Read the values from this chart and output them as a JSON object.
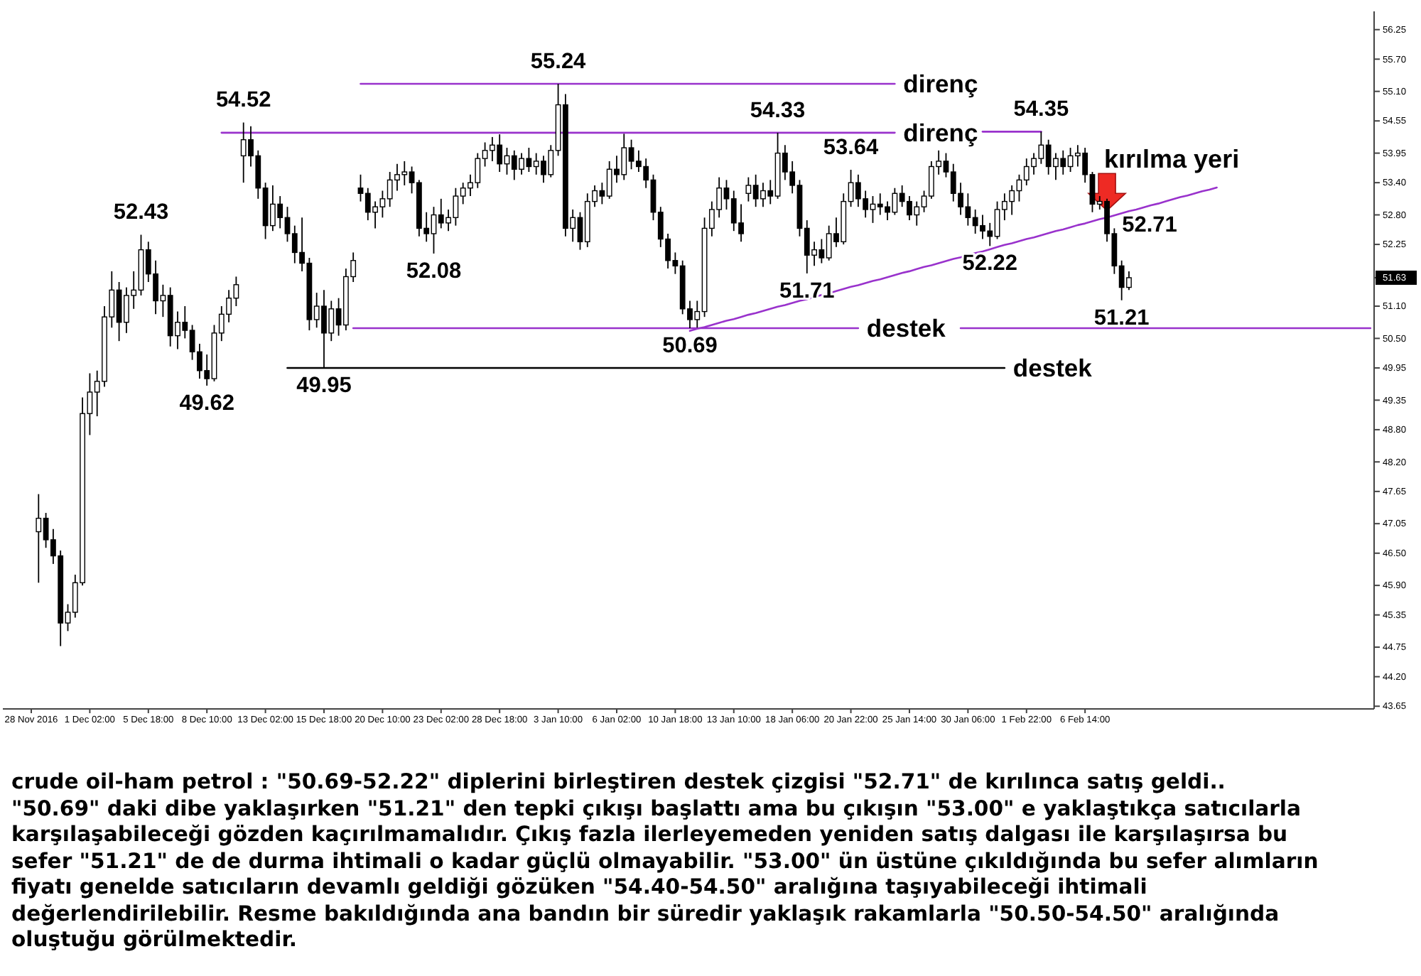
{
  "chart_data": {
    "type": "candlestick",
    "categories": [
      "28 Nov 2016",
      null,
      null,
      null,
      null,
      null,
      null,
      null,
      "1 Dec 02:00",
      null,
      null,
      null,
      null,
      null,
      null,
      null,
      "5 Dec 18:00",
      null,
      null,
      null,
      null,
      null,
      null,
      null,
      "8 Dec 10:00",
      null,
      null,
      null,
      null,
      null,
      null,
      null,
      "13 Dec 02:00",
      null,
      null,
      null,
      null,
      null,
      null,
      null,
      "15 Dec 18:00",
      null,
      null,
      null,
      null,
      null,
      null,
      null,
      "20 Dec 10:00",
      null,
      null,
      null,
      null,
      null,
      null,
      null,
      "23 Dec 02:00",
      null,
      null,
      null,
      null,
      null,
      null,
      null,
      "28 Dec 18:00",
      null,
      null,
      null,
      null,
      null,
      null,
      null,
      "3 Jan 10:00",
      null,
      null,
      null,
      null,
      null,
      null,
      null,
      "6 Jan 02:00",
      null,
      null,
      null,
      null,
      null,
      null,
      null,
      "10 Jan 18:00",
      null,
      null,
      null,
      null,
      null,
      null,
      null,
      "13 Jan 10:00",
      null,
      null,
      null,
      null,
      null,
      null,
      null,
      "18 Jan 06:00",
      null,
      null,
      null,
      null,
      null,
      null,
      null,
      "20 Jan 22:00",
      null,
      null,
      null,
      null,
      null,
      null,
      null,
      "25 Jan 14:00",
      null,
      null,
      null,
      null,
      null,
      null,
      null,
      "30 Jan 06:00",
      null,
      null,
      null,
      null,
      null,
      null,
      null,
      "1 Feb 22:00",
      null,
      null,
      null,
      null,
      null,
      null,
      null,
      "6 Feb 14:00",
      null,
      null,
      null,
      null,
      null,
      null,
      null,
      null,
      null,
      null,
      null,
      null,
      null,
      null,
      null,
      null,
      null,
      null,
      null,
      null,
      null,
      null,
      null,
      null,
      null,
      null,
      null,
      null,
      null,
      null,
      null,
      null,
      null,
      null,
      null,
      null,
      null,
      null,
      null
    ],
    "ohlc": [
      null,
      [
        46.9,
        47.6,
        45.95,
        47.15
      ],
      [
        47.15,
        47.25,
        46.6,
        46.75
      ],
      [
        46.75,
        46.95,
        46.3,
        46.45
      ],
      [
        46.45,
        46.55,
        44.77,
        45.2
      ],
      [
        45.2,
        45.55,
        45.05,
        45.4
      ],
      [
        45.4,
        46.1,
        45.3,
        45.95
      ],
      [
        45.95,
        49.4,
        45.9,
        49.1
      ],
      [
        49.1,
        49.85,
        48.7,
        49.5
      ],
      [
        49.5,
        49.9,
        49.05,
        49.7
      ],
      [
        49.7,
        51.1,
        49.6,
        50.9
      ],
      [
        50.9,
        51.75,
        50.7,
        51.4
      ],
      [
        51.4,
        51.55,
        50.45,
        50.8
      ],
      [
        50.8,
        51.45,
        50.6,
        51.3
      ],
      [
        51.3,
        51.75,
        51.05,
        51.4
      ],
      [
        51.4,
        52.43,
        51.3,
        52.15
      ],
      [
        52.15,
        52.3,
        51.55,
        51.7
      ],
      [
        51.7,
        51.95,
        50.95,
        51.2
      ],
      [
        51.2,
        51.5,
        50.9,
        51.3
      ],
      [
        51.3,
        51.45,
        50.35,
        50.55
      ],
      [
        50.55,
        51.0,
        50.3,
        50.8
      ],
      [
        50.8,
        51.1,
        50.5,
        50.65
      ],
      [
        50.65,
        50.75,
        50.1,
        50.25
      ],
      [
        50.25,
        50.4,
        49.75,
        49.9
      ],
      [
        49.9,
        50.2,
        49.62,
        49.75
      ],
      [
        49.75,
        50.75,
        49.7,
        50.6
      ],
      [
        50.6,
        51.1,
        50.45,
        50.95
      ],
      [
        50.95,
        51.4,
        50.8,
        51.25
      ],
      [
        51.25,
        51.65,
        51.1,
        51.5
      ],
      [
        53.9,
        54.52,
        53.4,
        54.2
      ],
      [
        54.2,
        54.45,
        53.7,
        53.9
      ],
      [
        53.9,
        54.0,
        53.1,
        53.3
      ],
      [
        53.3,
        53.4,
        52.35,
        52.6
      ],
      [
        52.6,
        53.35,
        52.5,
        53.0
      ],
      [
        53.0,
        53.15,
        52.55,
        52.75
      ],
      [
        52.75,
        52.95,
        52.3,
        52.45
      ],
      [
        52.45,
        52.6,
        51.9,
        52.1
      ],
      [
        52.1,
        52.75,
        51.75,
        51.9
      ],
      [
        51.9,
        52.0,
        50.65,
        50.85
      ],
      [
        50.85,
        51.35,
        50.7,
        51.1
      ],
      [
        51.1,
        51.4,
        49.95,
        50.6
      ],
      [
        50.6,
        51.2,
        50.45,
        51.05
      ],
      [
        51.05,
        51.25,
        50.55,
        50.75
      ],
      [
        50.75,
        51.8,
        50.65,
        51.65
      ],
      [
        51.65,
        52.1,
        51.55,
        51.95
      ],
      [
        53.3,
        53.55,
        53.05,
        53.2
      ],
      [
        53.2,
        53.3,
        52.7,
        52.85
      ],
      [
        52.85,
        53.05,
        52.55,
        52.95
      ],
      [
        52.95,
        53.25,
        52.75,
        53.1
      ],
      [
        53.1,
        53.6,
        52.95,
        53.45
      ],
      [
        53.45,
        53.75,
        53.25,
        53.55
      ],
      [
        53.55,
        53.8,
        53.35,
        53.6
      ],
      [
        53.6,
        53.7,
        53.2,
        53.4
      ],
      [
        53.4,
        53.45,
        52.4,
        52.55
      ],
      [
        52.55,
        52.85,
        52.3,
        52.45
      ],
      [
        52.45,
        52.95,
        52.08,
        52.8
      ],
      [
        52.8,
        53.1,
        52.55,
        52.65
      ],
      [
        52.65,
        52.9,
        52.5,
        52.75
      ],
      [
        52.75,
        53.3,
        52.6,
        53.15
      ],
      [
        53.15,
        53.4,
        53.0,
        53.3
      ],
      [
        53.3,
        53.55,
        53.15,
        53.4
      ],
      [
        53.4,
        53.95,
        53.3,
        53.85
      ],
      [
        53.85,
        54.15,
        53.7,
        54.0
      ],
      [
        54.0,
        54.25,
        53.8,
        54.1
      ],
      [
        54.1,
        54.3,
        53.6,
        53.75
      ],
      [
        53.75,
        54.05,
        53.55,
        53.9
      ],
      [
        53.9,
        54.0,
        53.45,
        53.65
      ],
      [
        53.65,
        53.95,
        53.55,
        53.85
      ],
      [
        53.85,
        54.05,
        53.6,
        53.7
      ],
      [
        53.7,
        53.95,
        53.55,
        53.8
      ],
      [
        53.8,
        53.9,
        53.4,
        53.55
      ],
      [
        53.55,
        54.1,
        53.5,
        54.0
      ],
      [
        54.0,
        55.24,
        53.9,
        54.85
      ],
      [
        54.85,
        55.05,
        52.4,
        52.55
      ],
      [
        52.55,
        52.9,
        52.3,
        52.75
      ],
      [
        52.75,
        52.85,
        52.15,
        52.3
      ],
      [
        52.3,
        53.2,
        52.2,
        53.05
      ],
      [
        53.05,
        53.35,
        52.95,
        53.25
      ],
      [
        53.25,
        53.4,
        53.0,
        53.15
      ],
      [
        53.15,
        53.8,
        53.1,
        53.65
      ],
      [
        53.65,
        53.9,
        53.4,
        53.55
      ],
      [
        53.55,
        54.31,
        53.45,
        54.05
      ],
      [
        54.05,
        54.2,
        53.65,
        53.8
      ],
      [
        53.8,
        54.0,
        53.6,
        53.7
      ],
      [
        53.7,
        53.85,
        53.3,
        53.45
      ],
      [
        53.45,
        53.55,
        52.7,
        52.85
      ],
      [
        52.85,
        52.95,
        52.2,
        52.35
      ],
      [
        52.35,
        52.45,
        51.8,
        51.95
      ],
      [
        51.95,
        52.1,
        51.7,
        51.85
      ],
      [
        51.85,
        51.95,
        50.95,
        51.05
      ],
      [
        51.05,
        51.2,
        50.69,
        50.85
      ],
      [
        50.85,
        51.2,
        50.7,
        51.0
      ],
      [
        51.0,
        52.75,
        50.9,
        52.55
      ],
      [
        52.55,
        53.05,
        52.4,
        52.9
      ],
      [
        52.9,
        53.5,
        52.75,
        53.3
      ],
      [
        53.3,
        53.45,
        52.9,
        53.1
      ],
      [
        53.1,
        53.25,
        52.5,
        52.65
      ],
      [
        52.65,
        53.0,
        52.3,
        52.45
      ],
      [
        53.2,
        53.5,
        53.05,
        53.35
      ],
      [
        53.35,
        53.55,
        52.95,
        53.1
      ],
      [
        53.1,
        53.4,
        52.95,
        53.25
      ],
      [
        53.25,
        53.45,
        53.0,
        53.15
      ],
      [
        53.15,
        54.33,
        53.1,
        53.95
      ],
      [
        53.95,
        54.1,
        53.45,
        53.6
      ],
      [
        53.6,
        53.8,
        53.2,
        53.35
      ],
      [
        53.35,
        53.45,
        52.4,
        52.55
      ],
      [
        52.55,
        52.7,
        51.71,
        52.05
      ],
      [
        52.05,
        52.3,
        51.85,
        52.15
      ],
      [
        52.15,
        52.35,
        51.9,
        52.0
      ],
      [
        52.0,
        52.6,
        51.95,
        52.45
      ],
      [
        52.45,
        52.75,
        52.2,
        52.3
      ],
      [
        52.3,
        53.2,
        52.25,
        53.05
      ],
      [
        53.05,
        53.64,
        52.95,
        53.4
      ],
      [
        53.4,
        53.55,
        52.95,
        53.1
      ],
      [
        53.1,
        53.25,
        52.75,
        52.9
      ],
      [
        52.9,
        53.15,
        52.65,
        53.0
      ],
      [
        53.0,
        53.2,
        52.8,
        52.95
      ],
      [
        52.95,
        53.05,
        52.7,
        52.85
      ],
      [
        52.85,
        53.3,
        52.8,
        53.2
      ],
      [
        53.2,
        53.35,
        52.95,
        53.05
      ],
      [
        53.05,
        53.15,
        52.7,
        52.8
      ],
      [
        52.8,
        53.05,
        52.6,
        52.95
      ],
      [
        52.95,
        53.25,
        52.85,
        53.15
      ],
      [
        53.15,
        53.8,
        53.1,
        53.7
      ],
      [
        53.7,
        54.0,
        53.55,
        53.8
      ],
      [
        53.8,
        53.95,
        53.5,
        53.6
      ],
      [
        53.6,
        53.75,
        53.05,
        53.2
      ],
      [
        53.2,
        53.4,
        52.8,
        52.95
      ],
      [
        52.95,
        53.2,
        52.6,
        52.75
      ],
      [
        52.75,
        52.9,
        52.45,
        52.6
      ],
      [
        52.6,
        52.8,
        52.35,
        52.5
      ],
      [
        52.5,
        52.65,
        52.22,
        52.4
      ],
      [
        52.4,
        53.05,
        52.35,
        52.9
      ],
      [
        52.9,
        53.2,
        52.7,
        53.05
      ],
      [
        53.05,
        53.35,
        52.8,
        53.25
      ],
      [
        53.25,
        53.55,
        53.05,
        53.45
      ],
      [
        53.45,
        53.85,
        53.35,
        53.7
      ],
      [
        53.7,
        53.95,
        53.55,
        53.85
      ],
      [
        53.85,
        54.35,
        53.75,
        54.1
      ],
      [
        54.1,
        54.2,
        53.55,
        53.7
      ],
      [
        53.7,
        53.95,
        53.45,
        53.85
      ],
      [
        53.85,
        54.0,
        53.55,
        53.7
      ],
      [
        53.7,
        54.05,
        53.6,
        53.9
      ],
      [
        53.9,
        54.1,
        53.7,
        53.95
      ],
      [
        53.95,
        54.05,
        53.4,
        53.55
      ],
      [
        53.55,
        53.6,
        52.85,
        53.0
      ],
      [
        53.0,
        53.15,
        52.9,
        53.05
      ],
      [
        53.05,
        53.1,
        52.3,
        52.45
      ],
      [
        52.45,
        52.55,
        51.7,
        51.85
      ],
      [
        51.85,
        51.95,
        51.21,
        51.45
      ],
      [
        51.45,
        51.75,
        51.4,
        51.63
      ],
      null,
      null,
      null,
      null,
      null,
      null,
      null,
      null,
      null,
      null,
      null,
      null,
      null,
      null,
      null,
      null,
      null,
      null,
      null,
      null,
      null,
      null,
      null,
      null,
      null,
      null,
      null,
      null,
      null,
      null,
      null,
      null,
      null
    ],
    "series": [
      {
        "type": "line",
        "name": "direnç",
        "color": "#9932cc",
        "values": [
          null,
          null,
          null,
          null,
          null,
          null,
          null,
          null,
          null,
          null,
          null,
          null,
          null,
          null,
          null,
          null,
          null,
          null,
          null,
          null,
          null,
          null,
          null,
          null,
          null,
          null,
          null,
          null,
          null,
          null,
          null,
          null,
          null,
          null,
          null,
          null,
          null,
          null,
          null,
          null,
          null,
          null,
          null,
          null,
          null,
          55.24,
          55.24,
          55.24,
          55.24,
          55.24,
          55.24,
          55.24,
          55.24,
          55.24,
          55.24,
          55.24,
          55.24,
          55.24,
          55.24,
          55.24,
          55.24,
          55.24,
          55.24,
          55.24,
          55.24,
          55.24,
          55.24,
          55.24,
          55.24,
          55.24,
          55.24,
          55.24,
          55.24,
          55.24,
          55.24,
          55.24,
          55.24,
          55.24,
          55.24,
          55.24,
          55.24,
          55.24,
          55.24,
          55.24,
          55.24,
          55.24,
          55.24,
          55.24,
          55.24,
          55.24,
          55.24,
          55.24,
          55.24,
          55.24,
          55.24,
          55.24,
          55.24,
          55.24,
          55.24,
          55.24,
          55.24,
          55.24,
          55.24,
          55.24,
          55.24,
          55.24,
          55.24,
          55.24,
          55.24,
          55.24,
          55.24,
          55.24,
          55.24,
          55.24,
          55.24,
          55.24,
          55.24,
          55.24,
          55.24,
          null,
          null,
          null,
          null,
          null,
          null,
          null,
          null,
          null,
          null,
          null,
          null,
          null,
          null,
          null,
          null,
          null,
          null,
          null,
          null,
          null,
          null,
          null,
          null,
          null,
          null,
          null,
          null,
          null,
          null,
          null,
          null,
          null,
          null,
          null,
          null,
          null,
          null,
          null,
          null,
          null,
          null,
          null,
          null,
          null,
          null,
          null,
          null,
          null,
          null,
          null,
          null,
          null,
          null,
          null,
          null,
          null,
          null,
          null,
          null,
          null,
          null,
          null,
          null,
          null
        ]
      },
      {
        "type": "line",
        "name": "direnç",
        "color": "#9932cc",
        "values": [
          null,
          null,
          null,
          null,
          null,
          null,
          null,
          null,
          null,
          null,
          null,
          null,
          null,
          null,
          null,
          null,
          null,
          null,
          null,
          null,
          null,
          null,
          null,
          null,
          null,
          null,
          54.33,
          54.33,
          54.33,
          54.33,
          54.33,
          54.33,
          54.33,
          54.33,
          54.33,
          54.33,
          54.33,
          54.33,
          54.33,
          54.33,
          54.33,
          54.33,
          54.33,
          54.33,
          54.33,
          54.33,
          54.33,
          54.33,
          54.33,
          54.33,
          54.33,
          54.33,
          54.33,
          54.33,
          54.33,
          54.33,
          54.33,
          54.33,
          54.33,
          54.33,
          54.33,
          54.33,
          54.33,
          54.33,
          54.33,
          54.33,
          54.33,
          54.33,
          54.33,
          54.33,
          54.33,
          54.33,
          54.33,
          54.33,
          54.33,
          54.33,
          54.33,
          54.33,
          54.33,
          54.33,
          54.33,
          54.33,
          54.33,
          54.33,
          54.33,
          54.33,
          54.33,
          54.33,
          54.33,
          54.33,
          54.33,
          54.33,
          54.33,
          54.33,
          54.33,
          54.33,
          54.33,
          54.33,
          54.33,
          54.33,
          54.33,
          54.33,
          54.33,
          54.33,
          54.33,
          54.33,
          54.33,
          54.33,
          54.33,
          54.33,
          54.33,
          54.33,
          54.33,
          54.33,
          54.33,
          54.33,
          54.33,
          54.33,
          54.33,
          null,
          null,
          null,
          null,
          null,
          null,
          null,
          null,
          null,
          null,
          null,
          null,
          null,
          null,
          null,
          null,
          null,
          null,
          null,
          null,
          null,
          null,
          null,
          null,
          null,
          null,
          null,
          null,
          null,
          null,
          null,
          null,
          null,
          null,
          null,
          null,
          null,
          null,
          null,
          null,
          null,
          null,
          null,
          null,
          null,
          null,
          null,
          null,
          null,
          null,
          null,
          null,
          null,
          null,
          null,
          null,
          null,
          null,
          null,
          null,
          null,
          null,
          null,
          null,
          null
        ]
      },
      {
        "type": "line",
        "color": "#9932cc",
        "values": [
          null,
          null,
          null,
          null,
          null,
          null,
          null,
          null,
          null,
          null,
          null,
          null,
          null,
          null,
          null,
          null,
          null,
          null,
          null,
          null,
          null,
          null,
          null,
          null,
          null,
          null,
          null,
          null,
          null,
          null,
          null,
          null,
          null,
          null,
          null,
          null,
          null,
          null,
          null,
          null,
          null,
          null,
          null,
          null,
          null,
          null,
          null,
          null,
          null,
          null,
          null,
          null,
          null,
          null,
          null,
          null,
          null,
          null,
          null,
          null,
          null,
          null,
          null,
          null,
          null,
          null,
          null,
          null,
          null,
          null,
          null,
          null,
          null,
          null,
          null,
          null,
          null,
          null,
          null,
          null,
          null,
          null,
          null,
          null,
          null,
          null,
          null,
          null,
          null,
          null,
          null,
          null,
          null,
          null,
          null,
          null,
          null,
          null,
          null,
          null,
          null,
          null,
          null,
          null,
          null,
          null,
          null,
          null,
          null,
          null,
          null,
          null,
          null,
          null,
          null,
          null,
          null,
          null,
          null,
          null,
          null,
          null,
          null,
          null,
          null,
          null,
          null,
          null,
          null,
          null,
          54.35,
          54.35,
          54.35,
          54.35,
          54.35,
          54.35,
          54.35,
          54.35,
          54.35,
          null,
          null,
          null,
          null,
          null,
          null,
          null,
          null,
          null,
          null,
          null,
          null,
          null,
          null,
          null,
          null,
          null,
          null,
          null,
          null,
          null,
          null,
          null,
          null,
          null,
          null,
          null,
          null,
          null,
          null,
          null,
          null,
          null,
          null,
          null,
          null,
          null,
          null,
          null,
          null,
          null,
          null,
          null,
          null,
          null
        ]
      },
      {
        "type": "line",
        "name": "destek",
        "color": "#9932cc",
        "values": [
          null,
          null,
          null,
          null,
          null,
          null,
          null,
          null,
          null,
          null,
          null,
          null,
          null,
          null,
          null,
          null,
          null,
          null,
          null,
          null,
          null,
          null,
          null,
          null,
          null,
          null,
          null,
          null,
          null,
          null,
          null,
          null,
          null,
          null,
          null,
          null,
          null,
          null,
          null,
          null,
          null,
          null,
          null,
          null,
          50.69,
          50.69,
          50.69,
          50.69,
          50.69,
          50.69,
          50.69,
          50.69,
          50.69,
          50.69,
          50.69,
          50.69,
          50.69,
          50.69,
          50.69,
          50.69,
          50.69,
          50.69,
          50.69,
          50.69,
          50.69,
          50.69,
          50.69,
          50.69,
          50.69,
          50.69,
          50.69,
          50.69,
          50.69,
          50.69,
          50.69,
          50.69,
          50.69,
          50.69,
          50.69,
          50.69,
          50.69,
          50.69,
          50.69,
          50.69,
          50.69,
          50.69,
          50.69,
          50.69,
          50.69,
          50.69,
          50.69,
          50.69,
          50.69,
          50.69,
          50.69,
          50.69,
          50.69,
          50.69,
          50.69,
          50.69,
          50.69,
          50.69,
          50.69,
          50.69,
          50.69,
          50.69,
          50.69,
          50.69,
          50.69,
          50.69,
          50.69,
          50.69,
          50.69,
          50.69,
          null,
          null,
          null,
          null,
          null,
          null,
          null,
          null,
          null,
          null,
          null,
          null,
          null,
          null,
          null,
          null,
          null,
          null,
          null,
          null,
          null,
          null,
          null,
          null,
          null,
          null,
          null,
          null,
          null,
          null,
          null,
          null,
          null,
          null,
          null,
          null,
          null,
          null,
          null,
          null,
          null,
          null,
          null,
          null,
          null,
          null,
          null,
          null,
          null,
          null,
          null,
          null,
          null,
          null,
          null,
          null,
          null,
          null,
          null,
          null,
          null,
          null,
          null,
          null,
          null,
          null,
          null,
          null,
          null,
          null
        ]
      },
      {
        "type": "line",
        "color": "#9932cc",
        "values": [
          null,
          null,
          null,
          null,
          null,
          null,
          null,
          null,
          null,
          null,
          null,
          null,
          null,
          null,
          null,
          null,
          null,
          null,
          null,
          null,
          null,
          null,
          null,
          null,
          null,
          null,
          null,
          null,
          null,
          null,
          null,
          null,
          null,
          null,
          null,
          null,
          null,
          null,
          null,
          null,
          null,
          null,
          null,
          null,
          null,
          null,
          null,
          null,
          null,
          null,
          null,
          null,
          null,
          null,
          null,
          null,
          null,
          null,
          null,
          null,
          null,
          null,
          null,
          null,
          null,
          null,
          null,
          null,
          null,
          null,
          null,
          null,
          null,
          null,
          null,
          null,
          null,
          null,
          null,
          null,
          null,
          null,
          null,
          null,
          null,
          null,
          null,
          null,
          null,
          null,
          null,
          null,
          null,
          null,
          null,
          null,
          null,
          null,
          null,
          null,
          null,
          null,
          null,
          null,
          null,
          null,
          null,
          null,
          null,
          null,
          null,
          null,
          null,
          null,
          null,
          null,
          null,
          null,
          null,
          null,
          null,
          null,
          null,
          null,
          null,
          null,
          null,
          50.69,
          50.69,
          50.69,
          50.69,
          50.69,
          50.69,
          50.69,
          50.69,
          50.69,
          50.69,
          50.69,
          50.69,
          50.69,
          50.69,
          50.69,
          50.69,
          50.69,
          50.69,
          50.69,
          50.69,
          50.69,
          50.69,
          50.69,
          50.69,
          50.69,
          50.69,
          50.69,
          50.69,
          50.69,
          50.69,
          50.69,
          50.69,
          50.69,
          50.69,
          50.69,
          50.69,
          50.69,
          50.69,
          50.69,
          50.69,
          50.69,
          50.69,
          50.69,
          50.69,
          50.69,
          50.69,
          50.69,
          50.69,
          50.69,
          50.69,
          50.69,
          50.69,
          50.69,
          50.69,
          50.69,
          50.69,
          50.69
        ]
      },
      {
        "type": "line",
        "name": "destek",
        "color": "#000000",
        "values": [
          null,
          null,
          null,
          null,
          null,
          null,
          null,
          null,
          null,
          null,
          null,
          null,
          null,
          null,
          null,
          null,
          null,
          null,
          null,
          null,
          null,
          null,
          null,
          null,
          null,
          null,
          null,
          null,
          null,
          null,
          null,
          null,
          null,
          null,
          null,
          49.95,
          49.95,
          49.95,
          49.95,
          49.95,
          49.95,
          49.95,
          49.95,
          49.95,
          49.95,
          49.95,
          49.95,
          49.95,
          49.95,
          49.95,
          49.95,
          49.95,
          49.95,
          49.95,
          49.95,
          49.95,
          49.95,
          49.95,
          49.95,
          49.95,
          49.95,
          49.95,
          49.95,
          49.95,
          49.95,
          49.95,
          49.95,
          49.95,
          49.95,
          49.95,
          49.95,
          49.95,
          49.95,
          49.95,
          49.95,
          49.95,
          49.95,
          49.95,
          49.95,
          49.95,
          49.95,
          49.95,
          49.95,
          49.95,
          49.95,
          49.95,
          49.95,
          49.95,
          49.95,
          49.95,
          49.95,
          49.95,
          49.95,
          49.95,
          49.95,
          49.95,
          49.95,
          49.95,
          49.95,
          49.95,
          49.95,
          49.95,
          49.95,
          49.95,
          49.95,
          49.95,
          49.95,
          49.95,
          49.95,
          49.95,
          49.95,
          49.95,
          49.95,
          49.95,
          49.95,
          49.95,
          49.95,
          49.95,
          49.95,
          49.95,
          49.95,
          49.95,
          49.95,
          49.95,
          49.95,
          49.95,
          49.95,
          49.95,
          49.95,
          49.95,
          49.95,
          49.95,
          49.95,
          49.95,
          null,
          null,
          null,
          null,
          null,
          null,
          null,
          null,
          null,
          null,
          null,
          null,
          null,
          null,
          null,
          null,
          null,
          null,
          null,
          null,
          null,
          null,
          null,
          null,
          null,
          null,
          null,
          null,
          null,
          null,
          null,
          null,
          null,
          null,
          null,
          null,
          null,
          null,
          null,
          null,
          null,
          null,
          null,
          null,
          null,
          null,
          null,
          null,
          null,
          null
        ]
      },
      {
        "type": "line",
        "color": "#9932cc",
        "values": [
          null,
          null,
          null,
          null,
          null,
          null,
          null,
          null,
          null,
          null,
          null,
          null,
          null,
          null,
          null,
          null,
          null,
          null,
          null,
          null,
          null,
          null,
          null,
          null,
          null,
          null,
          null,
          null,
          null,
          null,
          null,
          null,
          null,
          null,
          null,
          null,
          null,
          null,
          null,
          null,
          null,
          null,
          null,
          null,
          null,
          null,
          null,
          null,
          null,
          null,
          null,
          null,
          null,
          null,
          null,
          null,
          null,
          null,
          null,
          null,
          null,
          null,
          null,
          null,
          null,
          null,
          null,
          null,
          null,
          null,
          null,
          null,
          null,
          null,
          null,
          null,
          null,
          null,
          null,
          null,
          null,
          null,
          null,
          null,
          null,
          null,
          null,
          null,
          null,
          null,
          50.64,
          50.68,
          50.71,
          50.75,
          50.79,
          50.83,
          50.86,
          50.9,
          50.94,
          50.97,
          51.01,
          51.05,
          51.09,
          51.12,
          51.16,
          51.2,
          51.23,
          51.27,
          51.31,
          51.34,
          51.38,
          51.42,
          51.46,
          51.49,
          51.53,
          51.57,
          51.6,
          51.64,
          51.68,
          51.72,
          51.75,
          51.79,
          51.83,
          51.86,
          51.9,
          51.94,
          51.98,
          52.01,
          52.05,
          52.09,
          52.12,
          52.16,
          52.2,
          52.24,
          52.27,
          52.31,
          52.35,
          52.38,
          52.42,
          52.46,
          52.5,
          52.53,
          52.57,
          52.61,
          52.64,
          52.68,
          52.72,
          52.75,
          52.79,
          52.83,
          52.87,
          52.9,
          52.94,
          52.98,
          53.01,
          53.05,
          53.09,
          53.13,
          53.16,
          53.2,
          53.24,
          53.27,
          53.31,
          null,
          null,
          null,
          null,
          null,
          null,
          null,
          null,
          null,
          null,
          null,
          null,
          null,
          null,
          null,
          null,
          null,
          null,
          null,
          null,
          null
        ]
      }
    ],
    "ylim": [
      43.6,
      56.59
    ],
    "yticks": [
      56.25,
      {
        "value": 55.7,
        "label": "55.70"
      },
      {
        "value": 55.1,
        "label": "55.10"
      },
      54.55,
      53.95,
      {
        "value": 53.4,
        "label": "53.40"
      },
      {
        "value": 52.8,
        "label": "52.80"
      },
      52.25,
      51.63,
      {
        "value": 51.1,
        "label": "51.10"
      },
      {
        "value": 50.5,
        "label": "50.50"
      },
      49.95,
      49.35,
      {
        "value": 48.8,
        "label": "48.80"
      },
      {
        "value": 48.2,
        "label": "48.20"
      },
      47.65,
      47.05,
      {
        "value": 46.5,
        "label": "46.50"
      },
      {
        "value": 45.9,
        "label": "45.90"
      },
      45.35,
      44.75,
      {
        "value": 44.2,
        "label": "44.20"
      },
      43.65
    ],
    "annotations": [
      {
        "text": "52.43",
        "y": 52.43
      },
      {
        "text": "54.52",
        "y": 54.52
      },
      {
        "text": "55.24",
        "y": 55.24
      },
      {
        "text": "54.33",
        "y": 54.33
      },
      {
        "text": "53.64",
        "y": 53.64
      },
      {
        "text": "54.35",
        "y": 54.35
      },
      {
        "text": "49.62",
        "y": 49.62
      },
      {
        "text": "49.95",
        "y": 49.95
      },
      {
        "text": "52.08",
        "y": 52.08
      },
      {
        "text": "50.69",
        "y": 50.69
      },
      {
        "text": "51.71",
        "y": 51.71
      },
      {
        "text": "52.22",
        "y": 52.22
      },
      {
        "text": "51.21",
        "y": 51.21
      },
      "52.71",
      "kırılma yeri",
      "crude oil-ham petrol : \"50.69-52.22\" diplerini birleştiren destek çizgisi \"52.71\" de kırılınca satış geldi..\n\"50.69\" daki dibe yaklaşırken \"51.21\" den tepki çıkışı başlattı ama bu çıkışın \"53.00\" e yaklaştıkça satıcılarla\nkarşılaşabileceği gözden kaçırılmamalıdır. Çıkış fazla ilerleyemeden yeniden satış dalgası ile karşılaşırsa bu\nsefer \"51.21\" de de durma ihtimali o kadar güçlü olmayabilir. \"53.00\" ün üstüne çıkıldığında bu sefer alımların\nfiyatı genelde satıcıların devamlı geldiği gözüken \"54.40-54.50\" aralığına taşıyabileceği ihtimali\ndeğerlendirilebilir. Resme bakıldığında ana bandın bir süredir yaklaşık rakamlarla \"50.50-54.50\" aralığında\noluştuğu görülmektedir."
    ]
  }
}
